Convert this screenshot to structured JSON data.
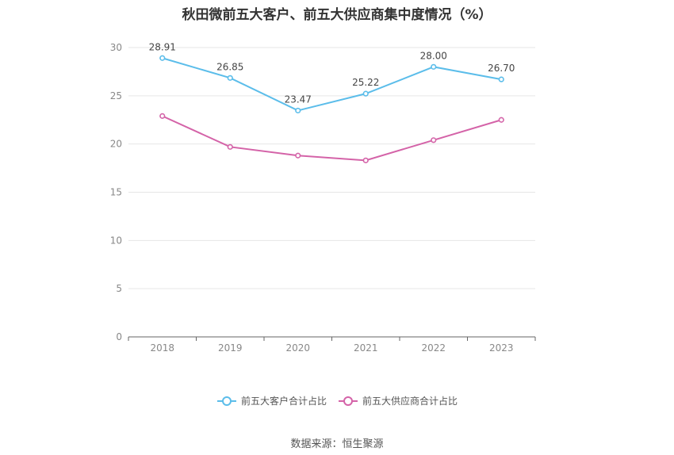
{
  "title": "秋田微前五大客户、前五大供应商集中度情况（%）",
  "source": "数据来源：恒生聚源",
  "chart_data": {
    "type": "line",
    "categories": [
      "2018",
      "2019",
      "2020",
      "2021",
      "2022",
      "2023"
    ],
    "series": [
      {
        "name": "前五大客户合计占比",
        "values": [
          28.91,
          26.85,
          23.47,
          25.22,
          28.0,
          26.7
        ],
        "color": "#5bbdea",
        "labels": [
          "28.91",
          "26.85",
          "23.47",
          "25.22",
          "28.00",
          "26.70"
        ]
      },
      {
        "name": "前五大供应商合计占比",
        "values": [
          22.9,
          19.7,
          18.8,
          18.3,
          20.4,
          22.5
        ],
        "color": "#d463a8",
        "labels": []
      }
    ],
    "ylim": [
      0,
      30
    ],
    "yticks": [
      0,
      5,
      10,
      15,
      20,
      25,
      30
    ],
    "grid": true,
    "legend_position": "bottom"
  }
}
